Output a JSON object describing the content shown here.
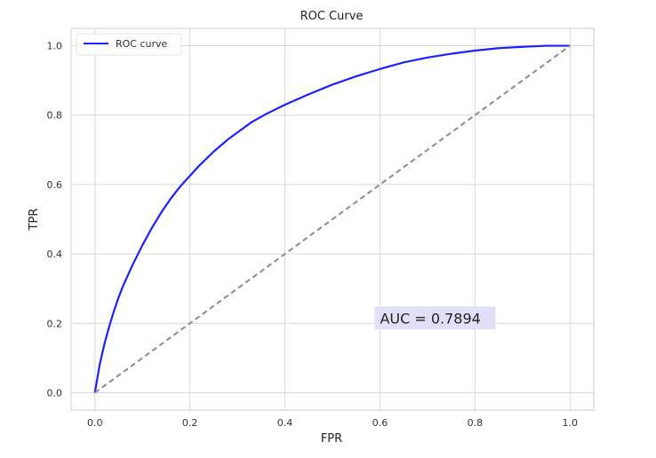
{
  "chart_data": {
    "type": "line",
    "title": "ROC Curve",
    "xlabel": "FPR",
    "ylabel": "TPR",
    "xlim": [
      -0.05,
      1.05
    ],
    "ylim": [
      -0.05,
      1.05
    ],
    "xticks": [
      "0.0",
      "0.2",
      "0.4",
      "0.6",
      "0.8",
      "1.0"
    ],
    "yticks": [
      "0.0",
      "0.2",
      "0.4",
      "0.6",
      "0.8",
      "1.0"
    ],
    "grid": true,
    "legend_position": "top-left",
    "series": [
      {
        "name": "ROC curve",
        "color": "#1f1fff",
        "x": [
          0.0,
          0.005,
          0.01,
          0.02,
          0.03,
          0.04,
          0.05,
          0.06,
          0.08,
          0.1,
          0.12,
          0.14,
          0.16,
          0.18,
          0.2,
          0.22,
          0.25,
          0.28,
          0.3,
          0.33,
          0.36,
          0.4,
          0.45,
          0.5,
          0.55,
          0.6,
          0.65,
          0.7,
          0.75,
          0.8,
          0.85,
          0.9,
          0.95,
          0.98,
          1.0
        ],
        "y": [
          0.0,
          0.04,
          0.08,
          0.14,
          0.19,
          0.235,
          0.275,
          0.31,
          0.37,
          0.425,
          0.475,
          0.52,
          0.56,
          0.595,
          0.625,
          0.655,
          0.695,
          0.73,
          0.75,
          0.78,
          0.803,
          0.83,
          0.86,
          0.888,
          0.912,
          0.933,
          0.952,
          0.966,
          0.977,
          0.986,
          0.993,
          0.997,
          1.0,
          1.0,
          1.0
        ]
      },
      {
        "name": "",
        "color": "#8c8c8c",
        "dashed": true,
        "x": [
          0.0,
          1.0
        ],
        "y": [
          0.0,
          1.0
        ]
      }
    ],
    "annotation": {
      "text": "AUC = 0.7894",
      "x": 0.6,
      "y": 0.2,
      "background": "#e0e0f8"
    }
  }
}
